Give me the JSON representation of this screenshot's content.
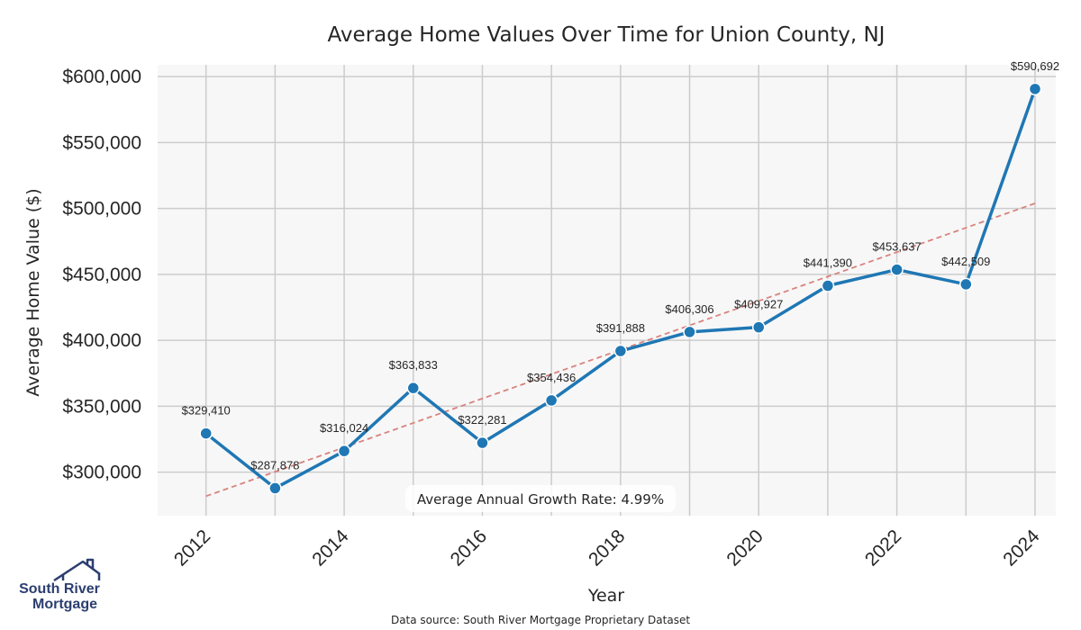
{
  "chart_data": {
    "type": "line",
    "title": "Average Home Values Over Time for Union County, NJ",
    "xlabel": "Year",
    "ylabel": "Average Home Value ($)",
    "x": [
      2012,
      2013,
      2014,
      2015,
      2016,
      2017,
      2018,
      2019,
      2020,
      2021,
      2022,
      2023,
      2024
    ],
    "series": [
      {
        "values": [
          329410,
          287878,
          316024,
          363833,
          322281,
          354436,
          391888,
          406306,
          409927,
          441390,
          453637,
          442509,
          590692
        ],
        "data_labels": [
          "$329,410",
          "$287,878",
          "$316,024",
          "$363,833",
          "$322,281",
          "$354,436",
          "$391,888",
          "$406,306",
          "$409,927",
          "$441,390",
          "$453,637",
          "$442,509",
          "$590,692"
        ],
        "color": "#1f77b4"
      }
    ],
    "trendline": {
      "start": 281800,
      "end": 503900,
      "color": "#d9827e",
      "style": "dashed"
    },
    "xticks": [
      2012,
      2014,
      2016,
      2018,
      2020,
      2022,
      2024
    ],
    "yticks": [
      300000,
      350000,
      400000,
      450000,
      500000,
      550000,
      600000
    ],
    "ytick_labels": [
      "$300,000",
      "$350,000",
      "$400,000",
      "$450,000",
      "$500,000",
      "$550,000",
      "$600,000"
    ],
    "xlim": [
      2011.3,
      2024.3
    ],
    "ylim": [
      267000,
      609000
    ],
    "grid": true,
    "annotation": "Average Annual Growth Rate: 4.99%",
    "source_note": "Data source: South River Mortgage Proprietary Dataset",
    "background_color": "#f7f7f7",
    "grid_color": "#cccccc"
  },
  "logo": {
    "line1": "South River",
    "line2": "Mortgage",
    "color": "#2c3e70"
  }
}
